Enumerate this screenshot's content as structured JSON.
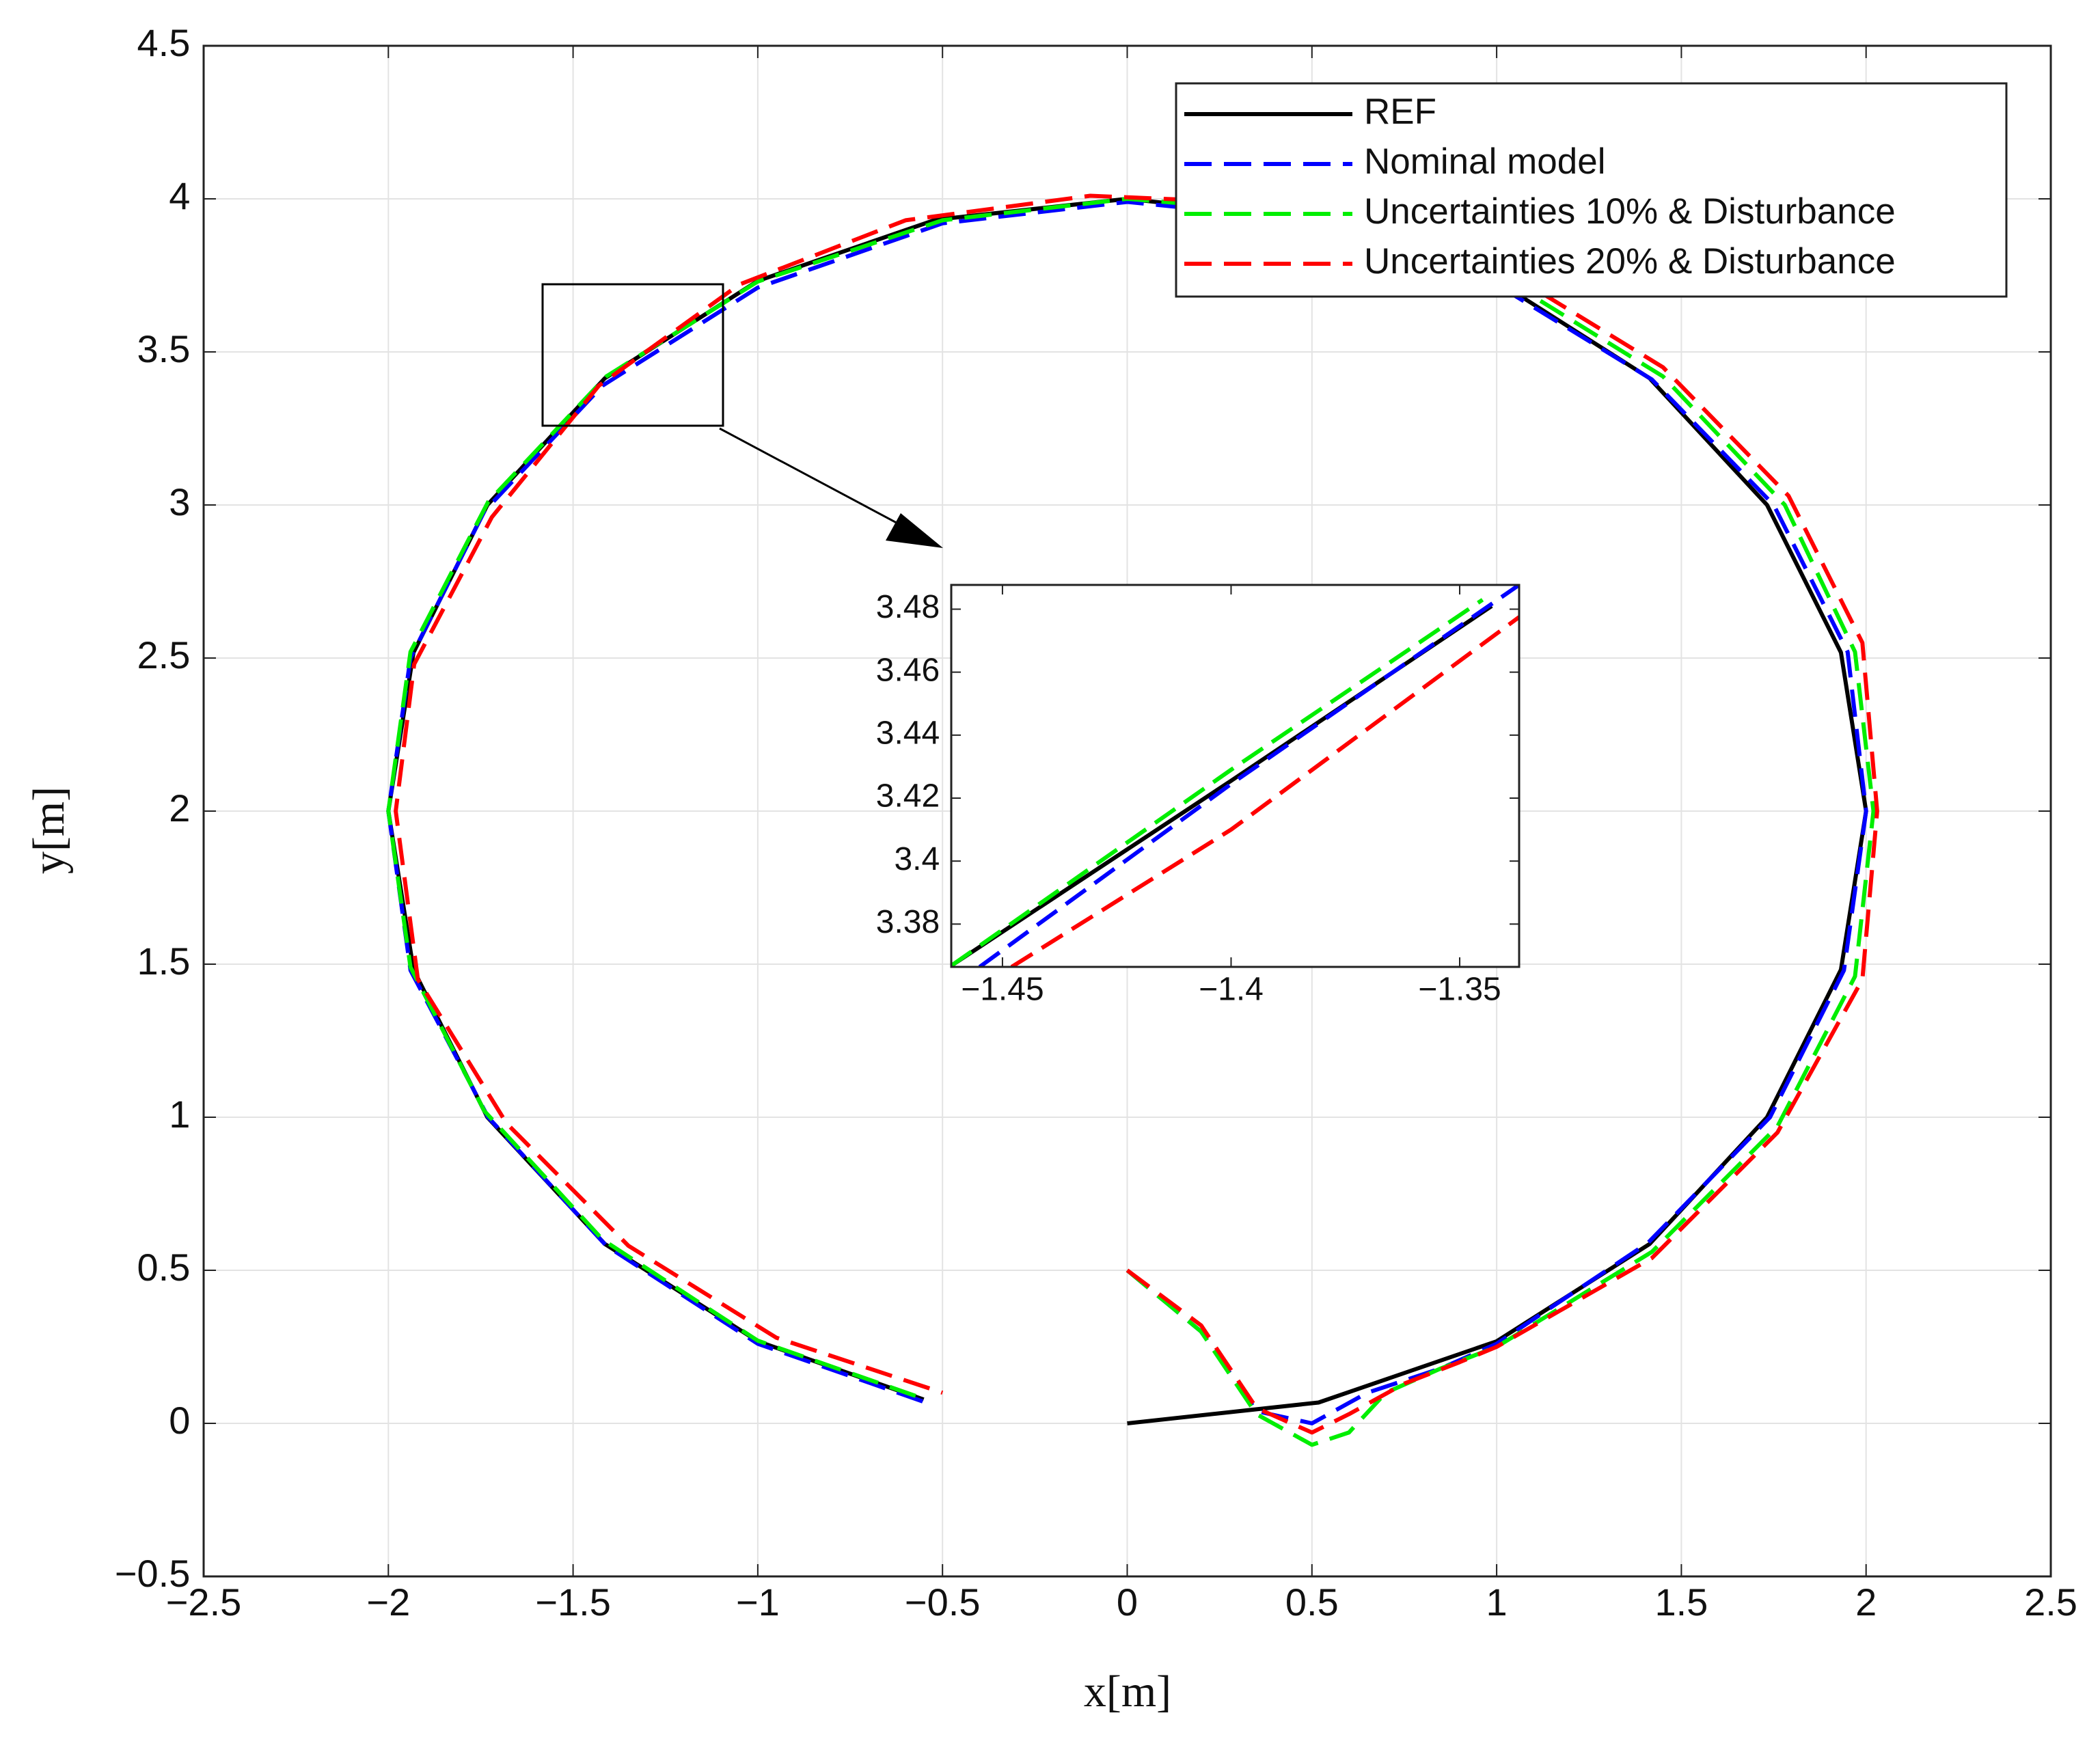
{
  "chart_data": [
    {
      "type": "line",
      "xlabel": "x[m]",
      "ylabel": "y[m]",
      "xlim": [
        -2.5,
        2.5
      ],
      "ylim": [
        -0.5,
        4.5
      ],
      "xticks": [
        {
          "value": -2.5,
          "label": "−2.5"
        },
        {
          "value": -2,
          "label": "−2"
        },
        {
          "value": -1.5,
          "label": "−1.5"
        },
        {
          "value": -1,
          "label": "−1"
        },
        {
          "value": -0.5,
          "label": "−0.5"
        },
        0,
        0.5,
        1,
        1.5,
        2,
        2.5
      ],
      "yticks": [
        {
          "value": -0.5,
          "label": "−0.5"
        },
        0,
        0.5,
        1,
        1.5,
        2,
        2.5,
        3,
        3.5,
        4,
        4.5
      ],
      "grid": true,
      "legend": "northeast",
      "series": [
        {
          "name": "REF",
          "color": "#000000",
          "line_style": "solid",
          "x": [
            0,
            0.518,
            1.0,
            1.414,
            1.732,
            1.932,
            2,
            1.932,
            1.732,
            1.414,
            1.0,
            0.518,
            0,
            -0.518,
            -1.0,
            -1.414,
            -1.732,
            -1.932,
            -2,
            -1.932,
            -1.732,
            -1.414,
            -1.0,
            -0.551
          ],
          "y": [
            0,
            0.068,
            0.268,
            0.586,
            1.0,
            1.482,
            2,
            2.518,
            3.0,
            3.414,
            3.732,
            3.932,
            4,
            3.932,
            3.732,
            3.414,
            3.0,
            2.518,
            2,
            1.482,
            1.0,
            0.586,
            0.268,
            0.078
          ]
        },
        {
          "name": "Nominal model",
          "color": "#0000ff",
          "line_style": "dashed",
          "x": [
            0,
            0.2,
            0.35,
            0.5,
            0.65,
            0.85,
            1.0,
            1.41,
            1.74,
            1.94,
            2.0,
            1.95,
            1.75,
            1.42,
            1.0,
            0.5,
            0,
            -0.5,
            -1.0,
            -1.42,
            -1.74,
            -1.94,
            -2.0,
            -1.94,
            -1.73,
            -1.41,
            -1.0,
            -0.55
          ],
          "y": [
            0.5,
            0.3,
            0.04,
            0.0,
            0.1,
            0.18,
            0.26,
            0.59,
            1.0,
            1.48,
            2.0,
            2.52,
            3.0,
            3.41,
            3.72,
            3.93,
            3.99,
            3.92,
            3.71,
            3.39,
            2.98,
            2.5,
            2.0,
            1.48,
            1.0,
            0.58,
            0.26,
            0.07
          ]
        },
        {
          "name": "Uncertainties 10% & Disturbance",
          "color": "#00ee00",
          "line_style": "dashed",
          "x": [
            0,
            0.2,
            0.35,
            0.5,
            0.6,
            0.7,
            0.85,
            1.0,
            1.42,
            1.76,
            1.97,
            2.02,
            1.97,
            1.78,
            1.45,
            1.02,
            0.5,
            0,
            -0.5,
            -1.0,
            -1.41,
            -1.73,
            -1.94,
            -2.0,
            -1.94,
            -1.74,
            -1.42,
            -1.0,
            -0.55
          ],
          "y": [
            0.5,
            0.3,
            0.03,
            -0.07,
            -0.03,
            0.1,
            0.18,
            0.25,
            0.56,
            0.97,
            1.46,
            2.0,
            2.52,
            3.0,
            3.42,
            3.74,
            3.95,
            4.0,
            3.93,
            3.73,
            3.42,
            3.01,
            2.52,
            2.0,
            1.49,
            1.02,
            0.6,
            0.27,
            0.08
          ]
        },
        {
          "name": "Uncertainties 20% & Disturbance",
          "color": "#ff0000",
          "line_style": "dashed",
          "x": [
            0,
            0.2,
            0.35,
            0.5,
            0.6,
            0.75,
            0.9,
            1.0,
            1.42,
            1.76,
            1.99,
            2.03,
            1.99,
            1.79,
            1.45,
            1.03,
            0.5,
            -0.1,
            -0.6,
            -1.05,
            -1.43,
            -1.72,
            -1.93,
            -1.98,
            -1.92,
            -1.68,
            -1.35,
            -0.95,
            -0.5
          ],
          "y": [
            0.5,
            0.32,
            0.05,
            -0.03,
            0.03,
            0.13,
            0.2,
            0.25,
            0.54,
            0.95,
            1.45,
            2.0,
            2.55,
            3.03,
            3.45,
            3.76,
            3.98,
            4.01,
            3.93,
            3.72,
            3.39,
            2.96,
            2.48,
            2.0,
            1.45,
            0.98,
            0.58,
            0.28,
            0.1
          ]
        }
      ]
    },
    {
      "type": "line",
      "xlim": [
        -1.4612,
        -1.337
      ],
      "ylim": [
        3.3664,
        3.4877
      ],
      "xticks": [
        {
          "value": -1.45,
          "label": "−1.45"
        },
        {
          "value": -1.4,
          "label": "−1.4"
        },
        {
          "value": -1.35,
          "label": "−1.35"
        }
      ],
      "yticks": [
        3.38,
        3.4,
        3.42,
        3.44,
        3.46,
        3.48
      ],
      "grid": false,
      "series": [
        {
          "color": "#000000",
          "line_style": "solid",
          "x": [
            -1.4612,
            -1.4,
            -1.343
          ],
          "y": [
            3.3668,
            3.4255,
            3.481
          ]
        },
        {
          "color": "#0000ff",
          "line_style": "dashed",
          "x": [
            -1.455,
            -1.4,
            -1.337
          ],
          "y": [
            3.3664,
            3.4245,
            3.4877
          ]
        },
        {
          "color": "#00ee00",
          "line_style": "dashed",
          "x": [
            -1.4612,
            -1.4,
            -1.345
          ],
          "y": [
            3.3668,
            3.429,
            3.483
          ]
        },
        {
          "color": "#ff0000",
          "line_style": "dashed",
          "x": [
            -1.448,
            -1.4,
            -1.337
          ],
          "y": [
            3.3664,
            3.41,
            3.4775
          ]
        }
      ]
    }
  ]
}
